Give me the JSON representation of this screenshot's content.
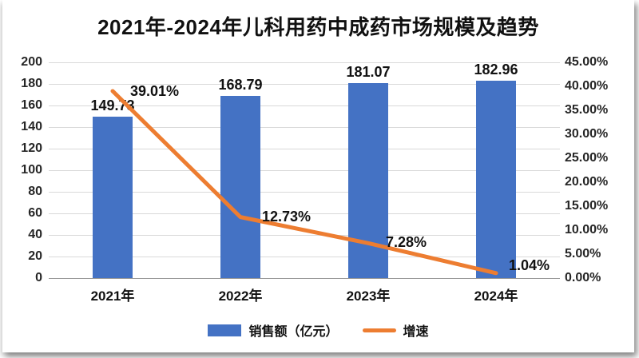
{
  "chart_data": {
    "type": "combo-bar-line",
    "title": "2021年-2024年儿科用药中成药市场规模及趋势",
    "categories": [
      "2021年",
      "2022年",
      "2023年",
      "2024年"
    ],
    "series": [
      {
        "name": "销售额（亿元）",
        "type": "bar",
        "axis": "left",
        "color": "#4472C4",
        "values": [
          149.73,
          168.79,
          181.07,
          182.96
        ],
        "data_labels": [
          "149.73",
          "168.79",
          "181.07",
          "182.96"
        ]
      },
      {
        "name": "增速",
        "type": "line",
        "axis": "right",
        "color": "#ED7D31",
        "values": [
          39.01,
          12.73,
          7.28,
          1.04
        ],
        "data_labels": [
          "39.01%",
          "12.73%",
          "7.28%",
          "1.04%"
        ]
      }
    ],
    "left_axis": {
      "min": 0,
      "max": 200,
      "step": 20,
      "ticks": [
        "0",
        "20",
        "40",
        "60",
        "80",
        "100",
        "120",
        "140",
        "160",
        "180",
        "200"
      ]
    },
    "right_axis": {
      "min": 0,
      "max": 45,
      "step": 5,
      "ticks": [
        "0.00%",
        "5.00%",
        "10.00%",
        "15.00%",
        "20.00%",
        "25.00%",
        "30.00%",
        "35.00%",
        "40.00%",
        "45.00%"
      ]
    },
    "grid": true,
    "legend_position": "bottom",
    "colors": {
      "bar": "#4472C4",
      "line": "#ED7D31",
      "gridline": "#d9d9d9",
      "axis_text": "#262626",
      "label_text": "#111111"
    }
  }
}
